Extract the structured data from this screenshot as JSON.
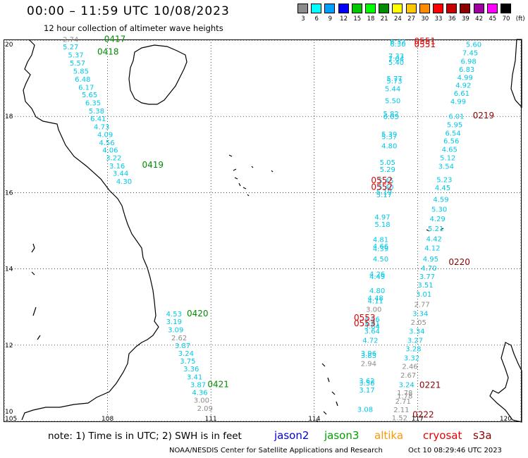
{
  "title": "00:00 – 11:59 UTC 10/08/2023",
  "subtitle": "12 hour collection of altimeter wave heights",
  "legend": {
    "unit": "(ft)",
    "bins": [
      {
        "label": "3",
        "color": "#8c8c8c"
      },
      {
        "label": "6",
        "color": "#00ffff"
      },
      {
        "label": "9",
        "color": "#00a0ff"
      },
      {
        "label": "12",
        "color": "#0000ff"
      },
      {
        "label": "15",
        "color": "#00c800"
      },
      {
        "label": "18",
        "color": "#00ff00"
      },
      {
        "label": "21",
        "color": "#008c00"
      },
      {
        "label": "24",
        "color": "#ffff00"
      },
      {
        "label": "27",
        "color": "#ffc800"
      },
      {
        "label": "30",
        "color": "#ff8c00"
      },
      {
        "label": "33",
        "color": "#ff0000"
      },
      {
        "label": "36",
        "color": "#c80000"
      },
      {
        "label": "39",
        "color": "#8c0000"
      },
      {
        "label": "42",
        "color": "#a000a0"
      },
      {
        "label": "45",
        "color": "#ff00ff"
      },
      {
        "label": "70",
        "color": "#000000"
      }
    ]
  },
  "axes": {
    "lon_ticks": [
      "105",
      "108",
      "111",
      "114",
      "117",
      "120"
    ],
    "lat_ticks": [
      "20",
      "18",
      "16",
      "14",
      "12",
      "10"
    ],
    "lon_range": [
      105,
      120
    ],
    "lat_range": [
      10,
      20
    ]
  },
  "colors": {
    "cyan": "#00c8e6",
    "gray": "#8c8c8c",
    "green": "#008c00",
    "red": "#e60000",
    "darkred": "#8c0000"
  },
  "pass_labels": [
    {
      "text": "0417",
      "lon": 107.9,
      "lat": 19.95,
      "color": "green"
    },
    {
      "text": "0418",
      "lon": 107.7,
      "lat": 19.62,
      "color": "green"
    },
    {
      "text": "0419",
      "lon": 109.0,
      "lat": 16.65,
      "color": "green"
    },
    {
      "text": "0420",
      "lon": 110.3,
      "lat": 12.75,
      "color": "green"
    },
    {
      "text": "0421",
      "lon": 110.9,
      "lat": 10.9,
      "color": "green"
    },
    {
      "text": "0551",
      "lon": 116.9,
      "lat": 19.9,
      "color": "red"
    },
    {
      "text": "0551",
      "lon": 116.9,
      "lat": 19.82,
      "color": "red"
    },
    {
      "text": "0552",
      "lon": 115.65,
      "lat": 16.25,
      "color": "red"
    },
    {
      "text": "0552",
      "lon": 115.65,
      "lat": 16.07,
      "color": "red"
    },
    {
      "text": "0553",
      "lon": 115.15,
      "lat": 12.64,
      "color": "red"
    },
    {
      "text": "0553",
      "lon": 115.15,
      "lat": 12.5,
      "color": "red"
    },
    {
      "text": "0219",
      "lon": 118.6,
      "lat": 17.95,
      "color": "darkred"
    },
    {
      "text": "0220",
      "lon": 117.9,
      "lat": 14.1,
      "color": "darkred"
    },
    {
      "text": "0221",
      "lon": 117.05,
      "lat": 10.88,
      "color": "darkred"
    },
    {
      "text": "0222",
      "lon": 116.85,
      "lat": 10.1,
      "color": "darkred"
    }
  ],
  "wave_heights": [
    {
      "text": "2.74",
      "lon": 106.7,
      "lat": 19.95,
      "color": "gray"
    },
    {
      "text": "5.27",
      "lon": 106.7,
      "lat": 19.76,
      "color": "cyan"
    },
    {
      "text": "5.37",
      "lon": 106.85,
      "lat": 19.55,
      "color": "cyan"
    },
    {
      "text": "5.57",
      "lon": 106.9,
      "lat": 19.33,
      "color": "cyan"
    },
    {
      "text": "5.85",
      "lon": 107.0,
      "lat": 19.12,
      "color": "cyan"
    },
    {
      "text": "6.48",
      "lon": 107.05,
      "lat": 18.91,
      "color": "cyan"
    },
    {
      "text": "6.17",
      "lon": 107.15,
      "lat": 18.7,
      "color": "cyan"
    },
    {
      "text": "5.65",
      "lon": 107.25,
      "lat": 18.5,
      "color": "cyan"
    },
    {
      "text": "6.35",
      "lon": 107.35,
      "lat": 18.29,
      "color": "cyan"
    },
    {
      "text": "5.38",
      "lon": 107.45,
      "lat": 18.08,
      "color": "cyan"
    },
    {
      "text": "6.41",
      "lon": 107.5,
      "lat": 17.87,
      "color": "cyan"
    },
    {
      "text": "4.73",
      "lon": 107.6,
      "lat": 17.66,
      "color": "cyan"
    },
    {
      "text": "4.09",
      "lon": 107.7,
      "lat": 17.46,
      "color": "cyan"
    },
    {
      "text": "4.56",
      "lon": 107.75,
      "lat": 17.25,
      "color": "cyan"
    },
    {
      "text": "4.06",
      "lon": 107.85,
      "lat": 17.05,
      "color": "cyan"
    },
    {
      "text": "3.22",
      "lon": 107.95,
      "lat": 16.85,
      "color": "cyan"
    },
    {
      "text": "3.16",
      "lon": 108.05,
      "lat": 16.64,
      "color": "cyan"
    },
    {
      "text": "3.44",
      "lon": 108.15,
      "lat": 16.44,
      "color": "cyan"
    },
    {
      "text": "4.30",
      "lon": 108.25,
      "lat": 16.23,
      "color": "cyan"
    },
    {
      "text": "4.53",
      "lon": 109.7,
      "lat": 12.75,
      "color": "cyan"
    },
    {
      "text": "3.19",
      "lon": 109.7,
      "lat": 12.55,
      "color": "cyan"
    },
    {
      "text": "3.09",
      "lon": 109.75,
      "lat": 12.34,
      "color": "cyan"
    },
    {
      "text": "2.62",
      "lon": 109.85,
      "lat": 12.13,
      "color": "gray"
    },
    {
      "text": "3.87",
      "lon": 109.95,
      "lat": 11.92,
      "color": "cyan"
    },
    {
      "text": "3.24",
      "lon": 110.05,
      "lat": 11.72,
      "color": "cyan"
    },
    {
      "text": "3.75",
      "lon": 110.1,
      "lat": 11.52,
      "color": "cyan"
    },
    {
      "text": "3.36",
      "lon": 110.2,
      "lat": 11.31,
      "color": "cyan"
    },
    {
      "text": "3.41",
      "lon": 110.3,
      "lat": 11.1,
      "color": "cyan"
    },
    {
      "text": "3.87",
      "lon": 110.4,
      "lat": 10.9,
      "color": "cyan"
    },
    {
      "text": "4.36",
      "lon": 110.45,
      "lat": 10.69,
      "color": "cyan"
    },
    {
      "text": "3.00",
      "lon": 110.5,
      "lat": 10.49,
      "color": "gray"
    },
    {
      "text": "2.09",
      "lon": 110.6,
      "lat": 10.28,
      "color": "gray"
    },
    {
      "text": "6.32",
      "lon": 116.2,
      "lat": 19.9,
      "color": "cyan"
    },
    {
      "text": "6.30",
      "lon": 116.2,
      "lat": 19.83,
      "color": "cyan"
    },
    {
      "text": "7.33",
      "lon": 116.15,
      "lat": 19.52,
      "color": "cyan"
    },
    {
      "text": "7.04",
      "lon": 116.15,
      "lat": 19.45,
      "color": "cyan"
    },
    {
      "text": "5.40",
      "lon": 116.15,
      "lat": 19.35,
      "color": "cyan"
    },
    {
      "text": "5.77",
      "lon": 116.1,
      "lat": 18.93,
      "color": "cyan"
    },
    {
      "text": "5.73",
      "lon": 116.1,
      "lat": 18.86,
      "color": "cyan"
    },
    {
      "text": "5.44",
      "lon": 116.05,
      "lat": 18.66,
      "color": "cyan"
    },
    {
      "text": "5.50",
      "lon": 116.05,
      "lat": 18.35,
      "color": "cyan"
    },
    {
      "text": "5.82",
      "lon": 116.0,
      "lat": 18.0,
      "color": "cyan"
    },
    {
      "text": "6.03",
      "lon": 116.0,
      "lat": 17.93,
      "color": "cyan"
    },
    {
      "text": "5.39",
      "lon": 115.95,
      "lat": 17.47,
      "color": "cyan"
    },
    {
      "text": "5.37",
      "lon": 115.95,
      "lat": 17.4,
      "color": "cyan"
    },
    {
      "text": "4.80",
      "lon": 115.95,
      "lat": 17.16,
      "color": "cyan"
    },
    {
      "text": "5.05",
      "lon": 115.9,
      "lat": 16.73,
      "color": "cyan"
    },
    {
      "text": "5.29",
      "lon": 115.9,
      "lat": 16.54,
      "color": "cyan"
    },
    {
      "text": "5.45",
      "lon": 115.85,
      "lat": 16.25,
      "color": "cyan"
    },
    {
      "text": "5.40",
      "lon": 115.85,
      "lat": 16.08,
      "color": "cyan"
    },
    {
      "text": "5.19",
      "lon": 115.8,
      "lat": 15.95,
      "color": "cyan"
    },
    {
      "text": "5.17",
      "lon": 115.8,
      "lat": 15.88,
      "color": "cyan"
    },
    {
      "text": "4.97",
      "lon": 115.75,
      "lat": 15.3,
      "color": "cyan"
    },
    {
      "text": "5.18",
      "lon": 115.75,
      "lat": 15.1,
      "color": "cyan"
    },
    {
      "text": "4.81",
      "lon": 115.7,
      "lat": 14.7,
      "color": "cyan"
    },
    {
      "text": "4.66",
      "lon": 115.7,
      "lat": 14.53,
      "color": "cyan"
    },
    {
      "text": "4.39",
      "lon": 115.7,
      "lat": 14.46,
      "color": "cyan"
    },
    {
      "text": "4.50",
      "lon": 115.7,
      "lat": 14.2,
      "color": "cyan"
    },
    {
      "text": "4.26",
      "lon": 115.6,
      "lat": 13.8,
      "color": "cyan"
    },
    {
      "text": "4.49",
      "lon": 115.6,
      "lat": 13.73,
      "color": "cyan"
    },
    {
      "text": "4.80",
      "lon": 115.6,
      "lat": 13.36,
      "color": "cyan"
    },
    {
      "text": "4.48",
      "lon": 115.55,
      "lat": 13.17,
      "color": "cyan"
    },
    {
      "text": "4.11",
      "lon": 115.55,
      "lat": 13.1,
      "color": "cyan"
    },
    {
      "text": "3.00",
      "lon": 115.5,
      "lat": 12.87,
      "color": "gray"
    },
    {
      "text": "4.56",
      "lon": 115.45,
      "lat": 12.62,
      "color": "cyan"
    },
    {
      "text": "3.91",
      "lon": 115.45,
      "lat": 12.5,
      "color": "cyan"
    },
    {
      "text": "3.84",
      "lon": 115.45,
      "lat": 12.43,
      "color": "cyan"
    },
    {
      "text": "3.64",
      "lon": 115.45,
      "lat": 12.3,
      "color": "cyan"
    },
    {
      "text": "4.72",
      "lon": 115.4,
      "lat": 12.06,
      "color": "cyan"
    },
    {
      "text": "3.96",
      "lon": 115.35,
      "lat": 11.72,
      "color": "cyan"
    },
    {
      "text": "3.83",
      "lon": 115.35,
      "lat": 11.66,
      "color": "cyan"
    },
    {
      "text": "2.94",
      "lon": 115.35,
      "lat": 11.45,
      "color": "gray"
    },
    {
      "text": "3.62",
      "lon": 115.3,
      "lat": 11.0,
      "color": "cyan"
    },
    {
      "text": "3.58",
      "lon": 115.3,
      "lat": 10.94,
      "color": "cyan"
    },
    {
      "text": "3.17",
      "lon": 115.3,
      "lat": 10.76,
      "color": "cyan"
    },
    {
      "text": "3.08",
      "lon": 115.25,
      "lat": 10.25,
      "color": "cyan"
    },
    {
      "text": "5.60",
      "lon": 118.4,
      "lat": 19.82,
      "color": "cyan"
    },
    {
      "text": "7.45",
      "lon": 118.3,
      "lat": 19.6,
      "color": "cyan"
    },
    {
      "text": "6.98",
      "lon": 118.25,
      "lat": 19.38,
      "color": "cyan"
    },
    {
      "text": "6.83",
      "lon": 118.2,
      "lat": 19.17,
      "color": "cyan"
    },
    {
      "text": "4.99",
      "lon": 118.15,
      "lat": 18.96,
      "color": "cyan"
    },
    {
      "text": "4.92",
      "lon": 118.1,
      "lat": 18.75,
      "color": "cyan"
    },
    {
      "text": "6.61",
      "lon": 118.05,
      "lat": 18.54,
      "color": "cyan"
    },
    {
      "text": "4.99",
      "lon": 117.95,
      "lat": 18.33,
      "color": "cyan"
    },
    {
      "text": "6.01",
      "lon": 117.9,
      "lat": 17.94,
      "color": "cyan"
    },
    {
      "text": "5.95",
      "lon": 117.85,
      "lat": 17.72,
      "color": "cyan"
    },
    {
      "text": "6.54",
      "lon": 117.8,
      "lat": 17.5,
      "color": "cyan"
    },
    {
      "text": "6.56",
      "lon": 117.75,
      "lat": 17.29,
      "color": "cyan"
    },
    {
      "text": "4.65",
      "lon": 117.7,
      "lat": 17.07,
      "color": "cyan"
    },
    {
      "text": "5.12",
      "lon": 117.65,
      "lat": 16.85,
      "color": "cyan"
    },
    {
      "text": "3.54",
      "lon": 117.6,
      "lat": 16.63,
      "color": "cyan"
    },
    {
      "text": "5.23",
      "lon": 117.55,
      "lat": 16.28,
      "color": "cyan"
    },
    {
      "text": "4.45",
      "lon": 117.5,
      "lat": 16.06,
      "color": "cyan"
    },
    {
      "text": "4.59",
      "lon": 117.45,
      "lat": 15.76,
      "color": "cyan"
    },
    {
      "text": "5.30",
      "lon": 117.4,
      "lat": 15.5,
      "color": "cyan"
    },
    {
      "text": "4.29",
      "lon": 117.35,
      "lat": 15.25,
      "color": "cyan"
    },
    {
      "text": "5.21",
      "lon": 117.3,
      "lat": 14.99,
      "color": "cyan"
    },
    {
      "text": "4.42",
      "lon": 117.25,
      "lat": 14.72,
      "color": "cyan"
    },
    {
      "text": "4.12",
      "lon": 117.2,
      "lat": 14.48,
      "color": "cyan"
    },
    {
      "text": "4.95",
      "lon": 117.15,
      "lat": 14.2,
      "color": "cyan"
    },
    {
      "text": "4.70",
      "lon": 117.1,
      "lat": 13.96,
      "color": "cyan"
    },
    {
      "text": "3.77",
      "lon": 117.05,
      "lat": 13.73,
      "color": "cyan"
    },
    {
      "text": "3.51",
      "lon": 117.0,
      "lat": 13.51,
      "color": "cyan"
    },
    {
      "text": "3.01",
      "lon": 116.95,
      "lat": 13.27,
      "color": "cyan"
    },
    {
      "text": "2.77",
      "lon": 116.9,
      "lat": 13.0,
      "color": "gray"
    },
    {
      "text": "3.34",
      "lon": 116.85,
      "lat": 12.76,
      "color": "cyan"
    },
    {
      "text": "2.05",
      "lon": 116.8,
      "lat": 12.53,
      "color": "gray"
    },
    {
      "text": "3.34",
      "lon": 116.75,
      "lat": 12.3,
      "color": "cyan"
    },
    {
      "text": "3.27",
      "lon": 116.7,
      "lat": 12.06,
      "color": "cyan"
    },
    {
      "text": "3.28",
      "lon": 116.65,
      "lat": 11.84,
      "color": "cyan"
    },
    {
      "text": "3.32",
      "lon": 116.6,
      "lat": 11.6,
      "color": "cyan"
    },
    {
      "text": "2.46",
      "lon": 116.55,
      "lat": 11.38,
      "color": "gray"
    },
    {
      "text": "2.67",
      "lon": 116.5,
      "lat": 11.15,
      "color": "gray"
    },
    {
      "text": "3.24",
      "lon": 116.45,
      "lat": 10.9,
      "color": "cyan"
    },
    {
      "text": "1.78",
      "lon": 116.4,
      "lat": 10.68,
      "color": "gray"
    },
    {
      "text": "1.78",
      "lon": 116.4,
      "lat": 10.6,
      "color": "gray"
    },
    {
      "text": "2.71",
      "lon": 116.35,
      "lat": 10.46,
      "color": "gray"
    },
    {
      "text": "2.11",
      "lon": 116.3,
      "lat": 10.24,
      "color": "gray"
    },
    {
      "text": "1.52",
      "lon": 116.25,
      "lat": 10.03,
      "color": "gray"
    }
  ],
  "note": "note:  1) Time is in UTC;  2) SWH is in feet",
  "satellites": [
    {
      "name": "jason2",
      "color": "#0000dc"
    },
    {
      "name": "jason3",
      "color": "#00a000"
    },
    {
      "name": "altika",
      "color": "#ff9600"
    },
    {
      "name": "cryosat",
      "color": "#e60000"
    },
    {
      "name": "s3a",
      "color": "#8c0000"
    }
  ],
  "footer": {
    "credit": "NOAA/NESDIS Center for Satellite Applications and Research",
    "timestamp": "Oct 10 08:29:46 UTC 2023"
  }
}
